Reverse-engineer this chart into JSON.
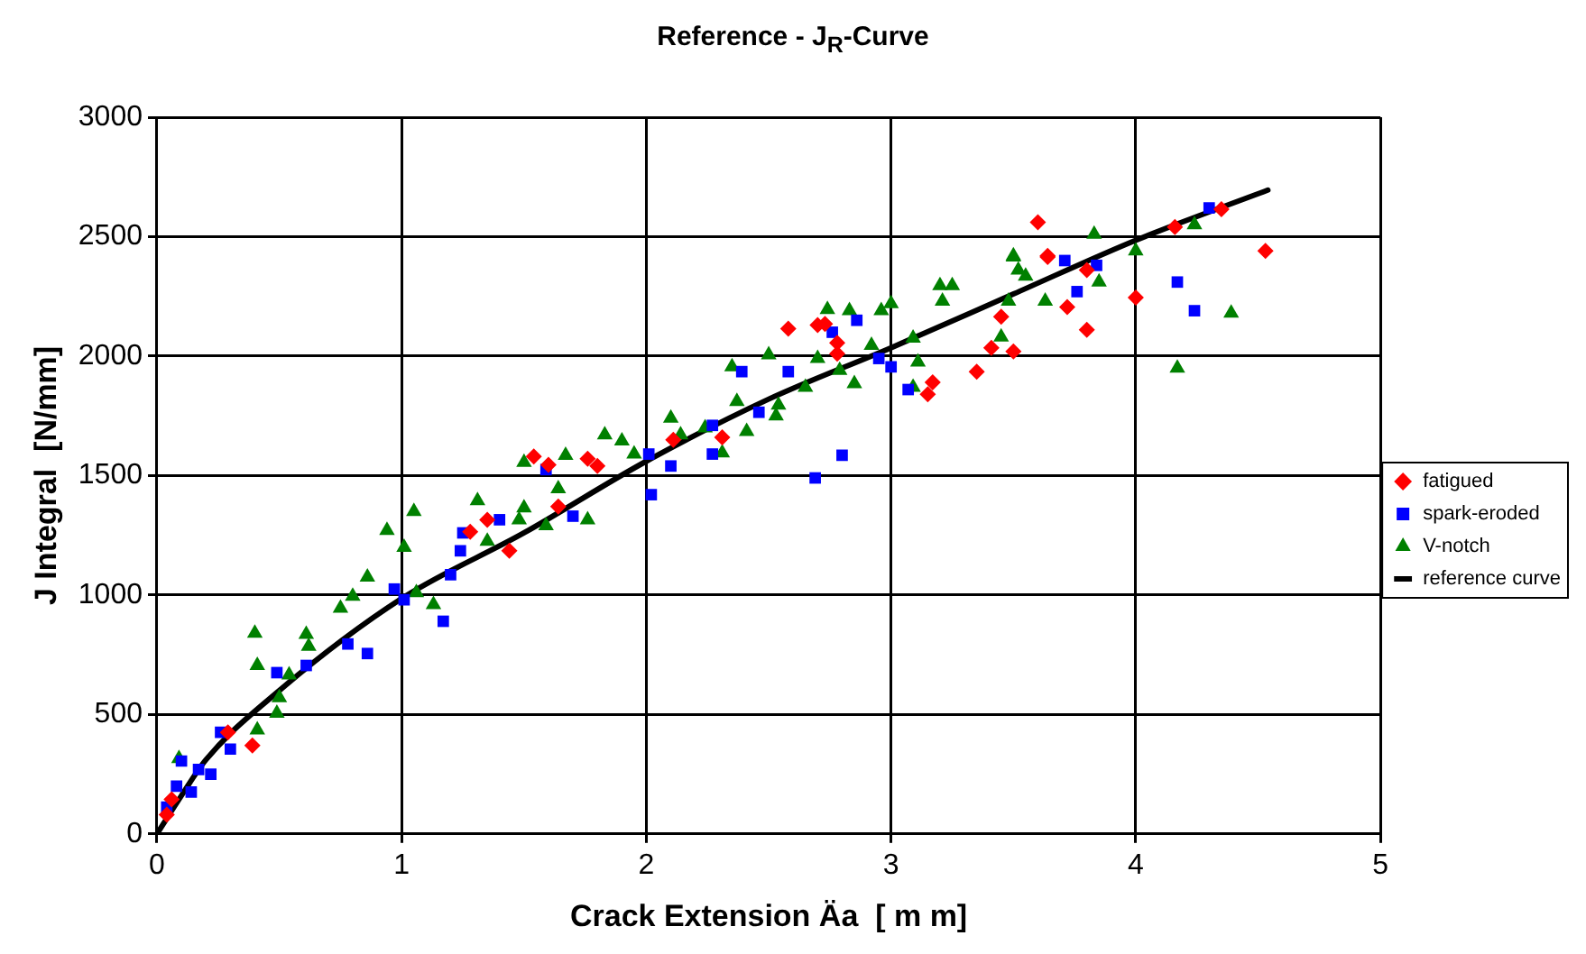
{
  "chart_data": {
    "type": "scatter",
    "title": "Reference - J$_{R}$-Curve",
    "xlabel": "Crack Extension Äa  [ m m]",
    "ylabel": "J Integral  [N/mm]",
    "xlim": [
      0,
      5
    ],
    "xticks": [
      0,
      1,
      2,
      3,
      4,
      5
    ],
    "ylim": [
      0,
      3000
    ],
    "yticks": [
      0,
      500,
      1000,
      1500,
      2000,
      2500,
      3000
    ],
    "grid": true,
    "legend": "right",
    "series": [
      {
        "name": "fatigued",
        "color": "#ff0000",
        "marker": "diamond",
        "x": [
          0.04,
          0.06,
          0.29,
          0.39,
          1.28,
          1.35,
          1.44,
          1.54,
          1.6,
          1.64,
          1.76,
          1.8,
          2.11,
          2.31,
          2.58,
          2.7,
          2.73,
          2.78,
          2.78,
          3.15,
          3.17,
          3.35,
          3.41,
          3.45,
          3.5,
          3.6,
          3.64,
          3.64,
          3.72,
          3.8,
          3.8,
          4.0,
          4.16,
          4.35,
          4.53
        ],
        "values": [
          80,
          145,
          425,
          370,
          1265,
          1315,
          1185,
          1580,
          1545,
          1370,
          1570,
          1540,
          1650,
          1660,
          2115,
          2130,
          2135,
          2055,
          2010,
          1840,
          1890,
          1935,
          2035,
          2165,
          2020,
          2560,
          2420,
          2415,
          2205,
          2110,
          2360,
          2245,
          2540,
          2615,
          2440
        ]
      },
      {
        "name": "spark-eroded",
        "color": "#0000ff",
        "marker": "square",
        "x": [
          0.04,
          0.08,
          0.1,
          0.14,
          0.17,
          0.22,
          0.26,
          0.3,
          0.49,
          0.61,
          0.78,
          0.86,
          0.97,
          1.01,
          1.17,
          1.2,
          1.24,
          1.25,
          1.4,
          1.59,
          1.7,
          2.01,
          2.02,
          2.1,
          2.27,
          2.27,
          2.39,
          2.46,
          2.58,
          2.69,
          2.76,
          2.8,
          2.86,
          2.95,
          3.0,
          3.07,
          3.71,
          3.76,
          3.84,
          4.17,
          4.24,
          4.3
        ],
        "values": [
          112,
          200,
          305,
          175,
          270,
          250,
          425,
          355,
          675,
          705,
          795,
          755,
          1025,
          980,
          890,
          1085,
          1185,
          1260,
          1315,
          1525,
          1330,
          1590,
          1420,
          1540,
          1710,
          1590,
          1935,
          1765,
          1935,
          1490,
          2100,
          1585,
          2150,
          1990,
          1955,
          1860,
          2400,
          2270,
          2380,
          2310,
          2190,
          2620
        ]
      },
      {
        "name": "V-notch",
        "color": "#008000",
        "marker": "triangle",
        "x": [
          0.09,
          0.4,
          0.41,
          0.41,
          0.49,
          0.5,
          0.54,
          0.61,
          0.62,
          0.75,
          0.8,
          0.86,
          0.94,
          1.01,
          1.05,
          1.06,
          1.13,
          1.31,
          1.35,
          1.48,
          1.5,
          1.5,
          1.59,
          1.64,
          1.67,
          1.76,
          1.83,
          1.9,
          1.95,
          2.1,
          2.14,
          2.24,
          2.31,
          2.35,
          2.37,
          2.41,
          2.5,
          2.53,
          2.54,
          2.65,
          2.7,
          2.74,
          2.79,
          2.83,
          2.85,
          2.92,
          2.96,
          3.0,
          3.09,
          3.09,
          3.11,
          3.2,
          3.21,
          3.25,
          3.45,
          3.48,
          3.5,
          3.5,
          3.52,
          3.55,
          3.63,
          3.83,
          3.85,
          4.0,
          4.17,
          4.24,
          4.39
        ],
        "values": [
          315,
          840,
          435,
          705,
          505,
          570,
          665,
          835,
          785,
          945,
          995,
          1075,
          1270,
          1200,
          1350,
          1010,
          960,
          1395,
          1225,
          1315,
          1365,
          1555,
          1290,
          1445,
          1585,
          1315,
          1670,
          1645,
          1590,
          1740,
          1670,
          1700,
          1595,
          1955,
          1810,
          1685,
          2005,
          1750,
          1795,
          1870,
          1990,
          2195,
          1940,
          2190,
          1885,
          2045,
          2190,
          2220,
          2075,
          1870,
          1975,
          2295,
          2230,
          2295,
          2080,
          2230,
          2415,
          2420,
          2360,
          2335,
          2230,
          2510,
          2310,
          2440,
          1950,
          2550,
          2180
        ]
      },
      {
        "name": "reference curve",
        "color": "#000000",
        "type": "line",
        "marker": "none",
        "line_style": "solid",
        "x": [
          0,
          0.1,
          0.2,
          0.5,
          1,
          1.5,
          2,
          2.5,
          3,
          3.5,
          4,
          4.54
        ],
        "values": [
          0,
          160,
          310,
          600,
          985,
          1260,
          1560,
          1820,
          2035,
          2260,
          2485,
          2695
        ]
      }
    ]
  }
}
